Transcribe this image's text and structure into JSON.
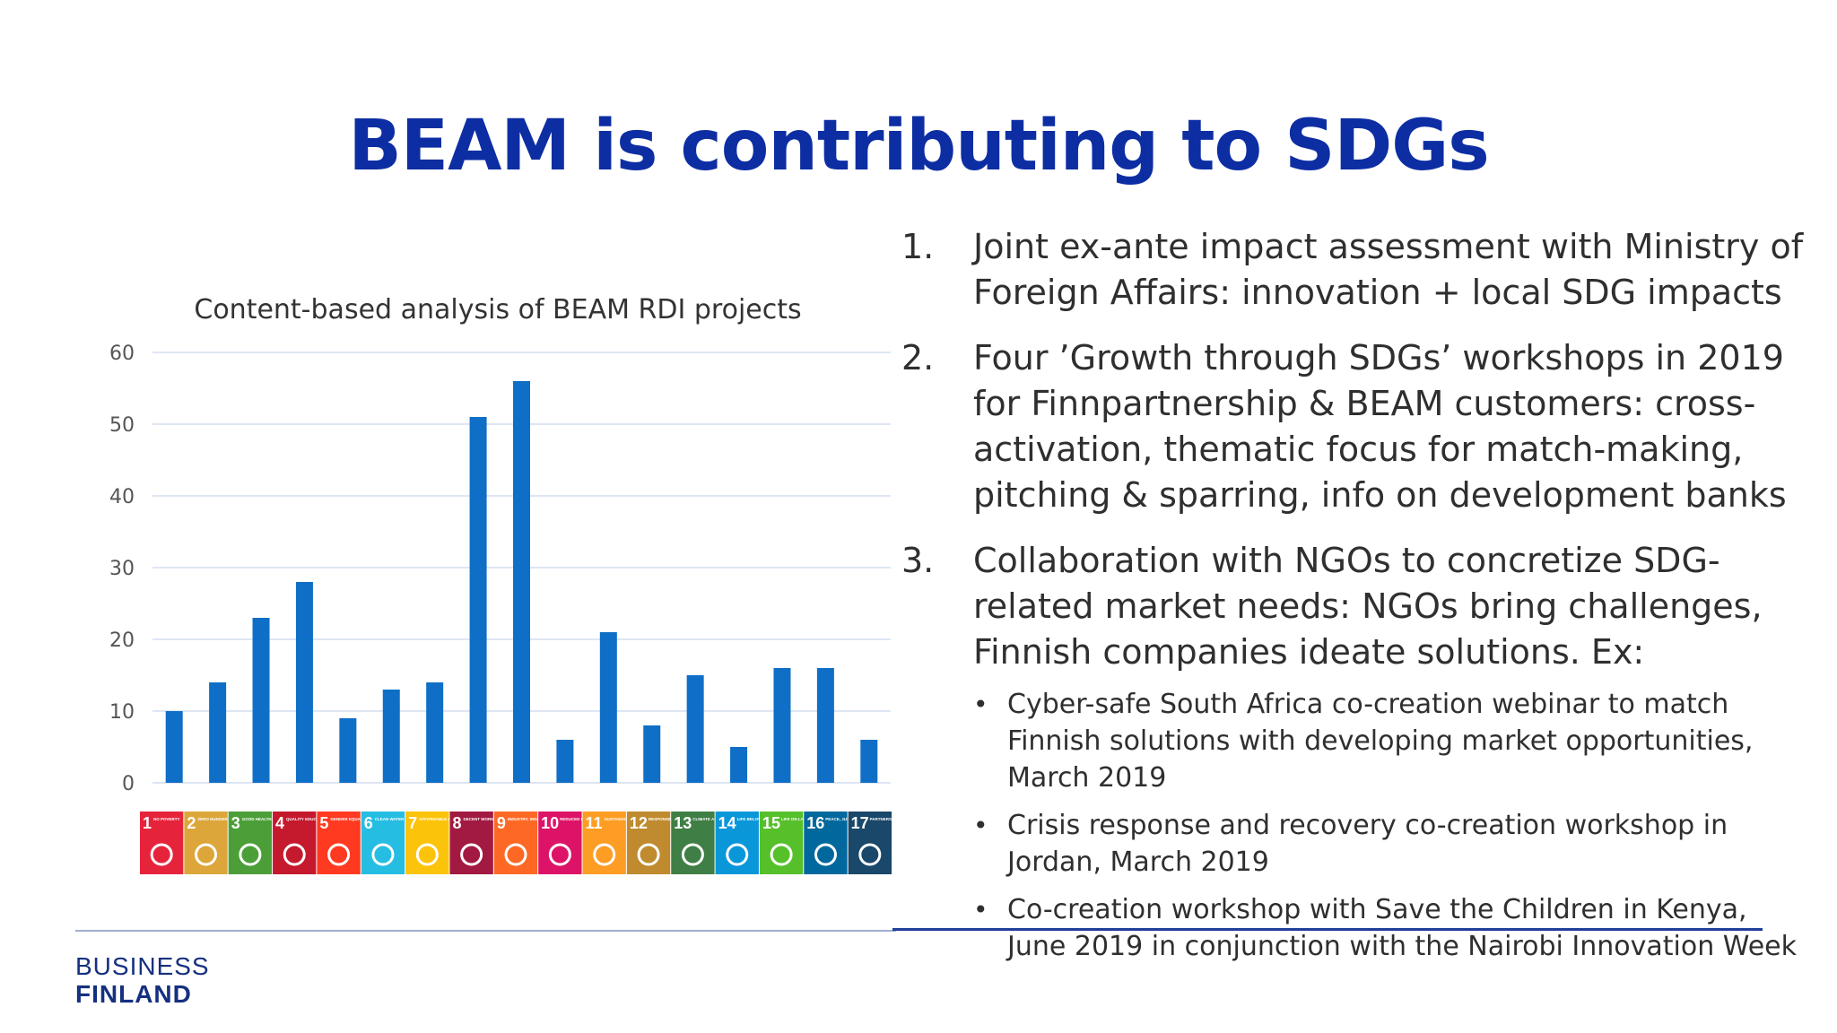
{
  "slide": {
    "title": "BEAM is contributing to SDGs"
  },
  "chart_data": {
    "type": "bar",
    "title": "Content-based analysis of BEAM RDI projects",
    "xlabel": "",
    "ylabel": "",
    "ylim": [
      0,
      60
    ],
    "yticks": [
      0,
      10,
      20,
      30,
      40,
      50,
      60
    ],
    "grid": true,
    "bar_color": "#0f6fc6",
    "categories": [
      "1",
      "2",
      "3",
      "4",
      "5",
      "6",
      "7",
      "8",
      "9",
      "10",
      "11",
      "12",
      "13",
      "14",
      "15",
      "16",
      "17"
    ],
    "values": [
      10,
      14,
      23,
      28,
      9,
      13,
      14,
      51,
      56,
      6,
      21,
      8,
      15,
      5,
      16,
      16,
      6
    ],
    "sdg_icons": [
      {
        "num": "1",
        "name": "NO POVERTY",
        "color": "#e5243b"
      },
      {
        "num": "2",
        "name": "ZERO HUNGER",
        "color": "#dda63a"
      },
      {
        "num": "3",
        "name": "GOOD HEALTH AND WELL-BEING",
        "color": "#4c9f38"
      },
      {
        "num": "4",
        "name": "QUALITY EDUCATION",
        "color": "#c5192d"
      },
      {
        "num": "5",
        "name": "GENDER EQUALITY",
        "color": "#ff3a21"
      },
      {
        "num": "6",
        "name": "CLEAN WATER AND SANITATION",
        "color": "#26bde2"
      },
      {
        "num": "7",
        "name": "AFFORDABLE AND CLEAN ENERGY",
        "color": "#fcc30b"
      },
      {
        "num": "8",
        "name": "DECENT WORK AND ECONOMIC GROWTH",
        "color": "#a21942"
      },
      {
        "num": "9",
        "name": "INDUSTRY, INNOVATION AND INFRASTRUCTURE",
        "color": "#fd6925"
      },
      {
        "num": "10",
        "name": "REDUCED INEQUALITIES",
        "color": "#dd1367"
      },
      {
        "num": "11",
        "name": "SUSTAINABLE CITIES AND COMMUNITIES",
        "color": "#fd9d24"
      },
      {
        "num": "12",
        "name": "RESPONSIBLE CONSUMPTION AND PRODUCTION",
        "color": "#bf8b2e"
      },
      {
        "num": "13",
        "name": "CLIMATE ACTION",
        "color": "#3f7e44"
      },
      {
        "num": "14",
        "name": "LIFE BELOW WATER",
        "color": "#0a97d9"
      },
      {
        "num": "15",
        "name": "LIFE ON LAND",
        "color": "#56c02b"
      },
      {
        "num": "16",
        "name": "PEACE, JUSTICE AND STRONG INSTITUTIONS",
        "color": "#00689d"
      },
      {
        "num": "17",
        "name": "PARTNERSHIPS FOR THE GOALS",
        "color": "#19486a"
      }
    ]
  },
  "list": {
    "items": [
      {
        "num": "1.",
        "text": "Joint ex-ante impact assessment with Ministry of Foreign Affairs: innovation + local SDG impacts"
      },
      {
        "num": "2.",
        "text": "Four ’Growth through SDGs’ workshops in 2019 for Finnpartnership & BEAM customers: cross-activation, thematic focus for match-making, pitching & sparring, info on development banks"
      },
      {
        "num": "3.",
        "text": "Collaboration with NGOs to concretize SDG-related market needs: NGOs bring challenges, Finnish companies ideate solutions. Ex:"
      }
    ],
    "bullet_char": "•",
    "bullets": [
      "Cyber-safe South Africa co-creation webinar to match Finnish solutions with developing market opportunities, March 2019",
      "Crisis response and recovery co-creation workshop in Jordan, March 2019",
      "Co-creation workshop with Save the Children in Kenya, June 2019 in conjunction with the Nairobi Innovation Week"
    ]
  },
  "logo": {
    "line1": "BUSINESS",
    "line2": "FINLAND"
  }
}
